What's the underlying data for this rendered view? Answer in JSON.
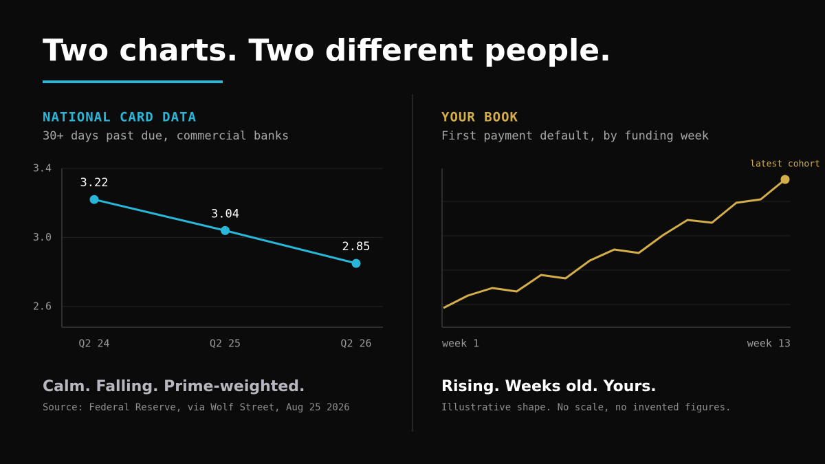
{
  "title": "Two charts. Two different people.",
  "chart_data": [
    {
      "type": "line",
      "title": "NATIONAL CARD DATA",
      "subtitle": "30+ days past due, commercial banks",
      "categories": [
        "Q2 24",
        "Q2 25",
        "Q2 26"
      ],
      "values": [
        3.22,
        3.04,
        2.85
      ],
      "color": "#29b6d8",
      "ylim": [
        2.48,
        3.4
      ],
      "yticks": [
        2.6,
        {
          "value": 3.0,
          "label": "3.0"
        },
        3.4
      ],
      "grid": true,
      "markers": "all",
      "caption": "Calm. Falling. Prime-weighted.",
      "source": "Source: Federal Reserve, via Wolf Street, Aug 25 2026"
    },
    {
      "type": "line",
      "title": "YOUR BOOK",
      "subtitle": "First payment default, by funding week",
      "categories": [
        "week 1",
        null,
        null,
        null,
        null,
        null,
        null,
        null,
        null,
        null,
        null,
        null,
        null,
        null,
        "week 13"
      ],
      "values": [
        0.9,
        1.26,
        1.48,
        1.38,
        1.86,
        1.76,
        2.28,
        2.6,
        2.5,
        3.02,
        3.46,
        3.38,
        3.96,
        4.06,
        4.64
      ],
      "color": "#d4ae4a",
      "ylim": [
        0.34,
        4.96
      ],
      "grid_lines": [
        1,
        2,
        3,
        4
      ],
      "grid": true,
      "markers": "last",
      "annotation": "latest cohort",
      "caption": "Rising. Weeks old. Yours.",
      "source": "Illustrative shape. No scale, no invented figures."
    }
  ]
}
